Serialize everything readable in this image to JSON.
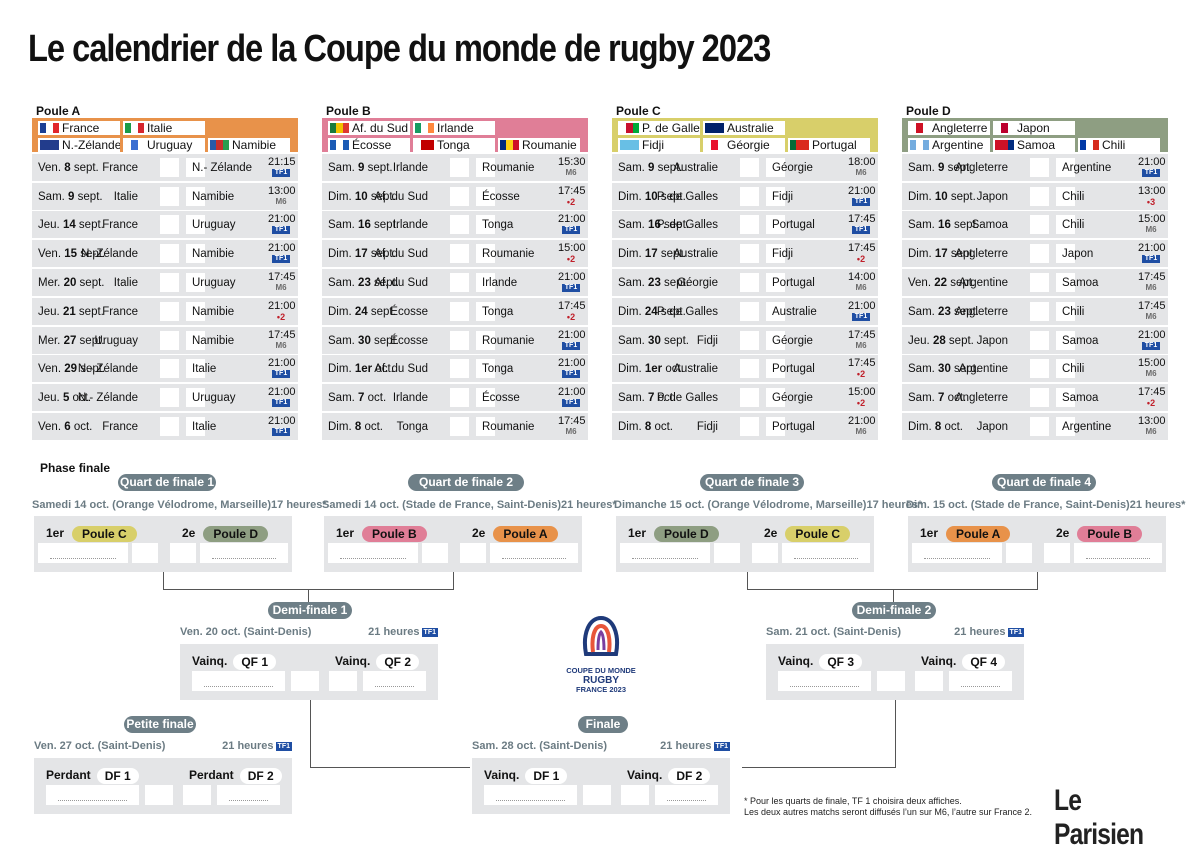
{
  "title": "Le calendrier de la Coupe du monde de rugby 2023",
  "colors": {
    "poolA": "#e8924a",
    "poolB": "#e07e97",
    "poolC": "#d8cf6a",
    "poolD": "#8e9e82",
    "grey": "#6e7f87"
  },
  "pools": [
    {
      "name": "Poule A",
      "color": "#e8924a",
      "teams": [
        {
          "name": "France",
          "flag": [
            "#1b3f94",
            "#ffffff",
            "#e1262b"
          ]
        },
        {
          "name": "Italie",
          "flag": [
            "#1a9b48",
            "#ffffff",
            "#d6252d"
          ]
        },
        {
          "name": "N.-Zélande",
          "flag": [
            "#223c8c",
            "#223c8c",
            "#223c8c"
          ]
        },
        {
          "name": "Uruguay",
          "flag": [
            "#ffffff",
            "#3a6ed1",
            "#ffffff"
          ]
        },
        {
          "name": "Namibie",
          "flag": [
            "#2a5aa8",
            "#c9302c",
            "#2a9d4f"
          ]
        }
      ],
      "matches": [
        {
          "day": "Ven. ",
          "dn": "8",
          "mo": " sept.",
          "home": "France",
          "away": "N.- Zélande",
          "time": "21:15",
          "tv": "TF1",
          "tvc": "tf1"
        },
        {
          "day": "Sam. ",
          "dn": "9",
          "mo": " sept.",
          "home": "Italie",
          "away": "Namibie",
          "time": "13:00",
          "tv": "M6",
          "tvc": "m6"
        },
        {
          "day": "Jeu. ",
          "dn": "14",
          "mo": " sept.",
          "home": "France",
          "away": "Uruguay",
          "time": "21:00",
          "tv": "TF1",
          "tvc": "tf1"
        },
        {
          "day": "Ven. ",
          "dn": "15",
          "mo": " sept.",
          "home": "N.-Zélande",
          "away": "Namibie",
          "time": "21:00",
          "tv": "TF1",
          "tvc": "tf1"
        },
        {
          "day": "Mer. ",
          "dn": "20",
          "mo": " sept.",
          "home": "Italie",
          "away": "Uruguay",
          "time": "17:45",
          "tv": "M6",
          "tvc": "m6"
        },
        {
          "day": "Jeu. ",
          "dn": "21",
          "mo": " sept.",
          "home": "France",
          "away": "Namibie",
          "time": "21:00",
          "tv": "•2",
          "tvc": "f2"
        },
        {
          "day": "Mer. ",
          "dn": "27",
          "mo": " sept.",
          "home": "Uruguay",
          "away": "Namibie",
          "time": "17:45",
          "tv": "M6",
          "tvc": "m6"
        },
        {
          "day": "Ven. ",
          "dn": "29",
          "mo": " sept.",
          "home": "N.- Zélande",
          "away": "Italie",
          "time": "21:00",
          "tv": "TF1",
          "tvc": "tf1"
        },
        {
          "day": "Jeu. ",
          "dn": "5",
          "mo": " oct.",
          "home": "N.- Zélande",
          "away": "Uruguay",
          "time": "21:00",
          "tv": "TF1",
          "tvc": "tf1"
        },
        {
          "day": "Ven. ",
          "dn": "6",
          "mo": " oct.",
          "home": "France",
          "away": "Italie",
          "time": "21:00",
          "tv": "TF1",
          "tvc": "tf1"
        }
      ]
    },
    {
      "name": "Poule B",
      "color": "#e07e97",
      "teams": [
        {
          "name": "Af. du Sud",
          "flag": [
            "#1a7a3c",
            "#f2c200",
            "#de3831"
          ]
        },
        {
          "name": "Irlande",
          "flag": [
            "#169b62",
            "#ffffff",
            "#ff883e"
          ]
        },
        {
          "name": "Écosse",
          "flag": [
            "#1a5ab5",
            "#ffffff",
            "#1a5ab5"
          ]
        },
        {
          "name": "Tonga",
          "flag": [
            "#ffffff",
            "#c10000",
            "#c10000"
          ]
        },
        {
          "name": "Roumanie",
          "flag": [
            "#002b7f",
            "#fcd116",
            "#ce1126"
          ]
        }
      ],
      "matches": [
        {
          "day": "Sam. ",
          "dn": "9",
          "mo": " sept.",
          "home": "Irlande",
          "away": "Roumanie",
          "time": "15:30",
          "tv": "M6",
          "tvc": "m6"
        },
        {
          "day": "Dim. ",
          "dn": "10",
          "mo": " sept.",
          "home": "Af. du Sud",
          "away": "Écosse",
          "time": "17:45",
          "tv": "•2",
          "tvc": "f2"
        },
        {
          "day": "Sam. ",
          "dn": "16",
          "mo": " sept.",
          "home": "Irlande",
          "away": "Tonga",
          "time": "21:00",
          "tv": "TF1",
          "tvc": "tf1"
        },
        {
          "day": "Dim. ",
          "dn": "17",
          "mo": " sept.",
          "home": "Af. du Sud",
          "away": "Roumanie",
          "time": "15:00",
          "tv": "•2",
          "tvc": "f2"
        },
        {
          "day": "Sam. ",
          "dn": "23",
          "mo": " sept.",
          "home": "Af. du Sud",
          "away": "Irlande",
          "time": "21:00",
          "tv": "TF1",
          "tvc": "tf1"
        },
        {
          "day": "Dim. ",
          "dn": "24",
          "mo": " sept.",
          "home": "Écosse",
          "away": "Tonga",
          "time": "17:45",
          "tv": "•2",
          "tvc": "f2"
        },
        {
          "day": "Sam. ",
          "dn": "30",
          "mo": " sept.",
          "home": "Écosse",
          "away": "Roumanie",
          "time": "21:00",
          "tv": "TF1",
          "tvc": "tf1"
        },
        {
          "day": "Dim. ",
          "dn": "1er",
          "mo": " oct.",
          "home": "Af. du Sud",
          "away": "Tonga",
          "time": "21:00",
          "tv": "TF1",
          "tvc": "tf1"
        },
        {
          "day": "Sam. ",
          "dn": "7",
          "mo": " oct.",
          "home": "Irlande",
          "away": "Écosse",
          "time": "21:00",
          "tv": "TF1",
          "tvc": "tf1"
        },
        {
          "day": "Dim. ",
          "dn": "8",
          "mo": " oct.",
          "home": "Tonga",
          "away": "Roumanie",
          "time": "17:45",
          "tv": "M6",
          "tvc": "m6"
        }
      ]
    },
    {
      "name": "Poule C",
      "color": "#d8cf6a",
      "teams": [
        {
          "name": "P. de Galles",
          "flag": [
            "#ffffff",
            "#c8102e",
            "#00ab39"
          ]
        },
        {
          "name": "Australie",
          "flag": [
            "#012169",
            "#012169",
            "#012169"
          ]
        },
        {
          "name": "Fidji",
          "flag": [
            "#68bfe5",
            "#68bfe5",
            "#68bfe5"
          ]
        },
        {
          "name": "Géorgie",
          "flag": [
            "#ffffff",
            "#e8112d",
            "#ffffff"
          ]
        },
        {
          "name": "Portugal",
          "flag": [
            "#046a38",
            "#da291c",
            "#da291c"
          ]
        }
      ],
      "matches": [
        {
          "day": "Sam. ",
          "dn": "9",
          "mo": " sept.",
          "home": "Australie",
          "away": "Géorgie",
          "time": "18:00",
          "tv": "M6",
          "tvc": "m6"
        },
        {
          "day": "Dim. ",
          "dn": "10",
          "mo": " sept.",
          "home": "P. de Galles",
          "away": "Fidji",
          "time": "21:00",
          "tv": "TF1",
          "tvc": "tf1"
        },
        {
          "day": "Sam. ",
          "dn": "16",
          "mo": " sept.",
          "home": "P. de Galles",
          "away": "Portugal",
          "time": "17:45",
          "tv": "TF1",
          "tvc": "tf1"
        },
        {
          "day": "Dim. ",
          "dn": "17",
          "mo": " sept.",
          "home": "Australie",
          "away": "Fidji",
          "time": "17:45",
          "tv": "•2",
          "tvc": "f2"
        },
        {
          "day": "Sam. ",
          "dn": "23",
          "mo": " sept.",
          "home": "Géorgie",
          "away": "Portugal",
          "time": "14:00",
          "tv": "M6",
          "tvc": "m6"
        },
        {
          "day": "Dim. ",
          "dn": "24",
          "mo": " sept.",
          "home": "P. de Galles",
          "away": "Australie",
          "time": "21:00",
          "tv": "TF1",
          "tvc": "tf1"
        },
        {
          "day": "Sam. ",
          "dn": "30",
          "mo": " sept.",
          "home": "Fidji",
          "away": "Géorgie",
          "time": "17:45",
          "tv": "M6",
          "tvc": "m6"
        },
        {
          "day": "Dim. ",
          "dn": "1er",
          "mo": " oct.",
          "home": "Australie",
          "away": "Portugal",
          "time": "17:45",
          "tv": "•2",
          "tvc": "f2"
        },
        {
          "day": "Sam. ",
          "dn": "7",
          "mo": " oct.",
          "home": "P. de Galles",
          "away": "Géorgie",
          "time": "15:00",
          "tv": "•2",
          "tvc": "f2"
        },
        {
          "day": "Dim. ",
          "dn": "8",
          "mo": " oct.",
          "home": "Fidji",
          "away": "Portugal",
          "time": "21:00",
          "tv": "M6",
          "tvc": "m6"
        }
      ]
    },
    {
      "name": "Poule D",
      "color": "#8e9e82",
      "teams": [
        {
          "name": "Angleterre",
          "flag": [
            "#ffffff",
            "#ce1124",
            "#ffffff"
          ]
        },
        {
          "name": "Japon",
          "flag": [
            "#ffffff",
            "#bc002d",
            "#ffffff"
          ]
        },
        {
          "name": "Argentine",
          "flag": [
            "#74acdf",
            "#ffffff",
            "#74acdf"
          ]
        },
        {
          "name": "Samoa",
          "flag": [
            "#ce1126",
            "#ce1126",
            "#002b7f"
          ]
        },
        {
          "name": "Chili",
          "flag": [
            "#0039a6",
            "#ffffff",
            "#d52b1e"
          ]
        }
      ],
      "matches": [
        {
          "day": "Sam. ",
          "dn": "9",
          "mo": " sept.",
          "home": "Angleterre",
          "away": "Argentine",
          "time": "21:00",
          "tv": "TF1",
          "tvc": "tf1"
        },
        {
          "day": "Dim. ",
          "dn": "10",
          "mo": " sept.",
          "home": "Japon",
          "away": "Chili",
          "time": "13:00",
          "tv": "•3",
          "tvc": "f2"
        },
        {
          "day": "Sam. ",
          "dn": "16",
          "mo": " sept.",
          "home": "Samoa",
          "away": "Chili",
          "time": "15:00",
          "tv": "M6",
          "tvc": "m6"
        },
        {
          "day": "Dim. ",
          "dn": "17",
          "mo": " sept.",
          "home": "Angleterre",
          "away": "Japon",
          "time": "21:00",
          "tv": "TF1",
          "tvc": "tf1"
        },
        {
          "day": "Ven. ",
          "dn": "22",
          "mo": " sept.",
          "home": "Argentine",
          "away": "Samoa",
          "time": "17:45",
          "tv": "M6",
          "tvc": "m6"
        },
        {
          "day": "Sam. ",
          "dn": "23",
          "mo": " sept.",
          "home": "Angleterre",
          "away": "Chili",
          "time": "17:45",
          "tv": "M6",
          "tvc": "m6"
        },
        {
          "day": "Jeu. ",
          "dn": "28",
          "mo": " sept.",
          "home": "Japon",
          "away": "Samoa",
          "time": "21:00",
          "tv": "TF1",
          "tvc": "tf1"
        },
        {
          "day": "Sam. ",
          "dn": "30",
          "mo": " sept.",
          "home": "Argentine",
          "away": "Chili",
          "time": "15:00",
          "tv": "M6",
          "tvc": "m6"
        },
        {
          "day": "Sam. ",
          "dn": "7",
          "mo": " oct.",
          "home": "Angleterre",
          "away": "Samoa",
          "time": "17:45",
          "tv": "•2",
          "tvc": "f2"
        },
        {
          "day": "Dim. ",
          "dn": "8",
          "mo": " oct.",
          "home": "Japon",
          "away": "Argentine",
          "time": "13:00",
          "tv": "M6",
          "tvc": "m6"
        }
      ]
    }
  ],
  "phase_finale": "Phase finale",
  "quarters": [
    {
      "title": "Quart de finale 1",
      "date": "Samedi 14 oct. (Orange Vélodrome, Marseille)",
      "hour": "17 heures*",
      "first": "1er",
      "second": "2e",
      "p1": "Poule C",
      "c1": "#d8cf6a",
      "p2": "Poule D",
      "c2": "#8e9e82"
    },
    {
      "title": "Quart de finale 2",
      "date": "Samedi 14 oct. (Stade de France, Saint-Denis)",
      "hour": "21 heures*",
      "first": "1er",
      "second": "2e",
      "p1": "Poule B",
      "c1": "#e07e97",
      "p2": "Poule A",
      "c2": "#e8924a"
    },
    {
      "title": "Quart de finale 3",
      "date": "Dimanche 15 oct. (Orange Vélodrome, Marseille)",
      "hour": "17 heures*",
      "first": "1er",
      "second": "2e",
      "p1": "Poule D",
      "c1": "#8e9e82",
      "p2": "Poule C",
      "c2": "#d8cf6a"
    },
    {
      "title": "Quart de finale 4",
      "date": "Dim. 15 oct. (Stade de France, Saint-Denis)",
      "hour": "21 heures*",
      "first": "1er",
      "second": "2e",
      "p1": "Poule A",
      "c1": "#e8924a",
      "p2": "Poule B",
      "c2": "#e07e97"
    }
  ],
  "semis": [
    {
      "title": "Demi-finale 1",
      "date": "Ven. 20 oct. (Saint-Denis)",
      "hour": "21 heures",
      "l1": "Vainq.",
      "t1": "QF 1",
      "l2": "Vainq.",
      "t2": "QF 2"
    },
    {
      "title": "Demi-finale 2",
      "date": "Sam. 21 oct. (Saint-Denis)",
      "hour": "21 heures",
      "l1": "Vainq.",
      "t1": "QF 3",
      "l2": "Vainq.",
      "t2": "QF 4"
    }
  ],
  "petite": {
    "title": "Petite finale",
    "date": "Ven. 27 oct. (Saint-Denis)",
    "hour": "21 heures",
    "l1": "Perdant",
    "t1": "DF 1",
    "l2": "Perdant",
    "t2": "DF 2"
  },
  "finale": {
    "title": "Finale",
    "date": "Sam. 28 oct. (Saint-Denis)",
    "hour": "21 heures",
    "l1": "Vainq.",
    "t1": "DF 1",
    "l2": "Vainq.",
    "t2": "DF 2"
  },
  "tv_tf1": "TF1",
  "logo": {
    "line1": "COUPE DU MONDE",
    "line2": "RUGBY",
    "line3": "FRANCE 2023"
  },
  "note": {
    "line1": "* Pour les quarts de finale, TF 1 choisira deux affiches.",
    "line2": "Les deux autres matchs seront diffusés l’un sur M6, l’autre sur France 2."
  },
  "brand": "Le Parisien"
}
